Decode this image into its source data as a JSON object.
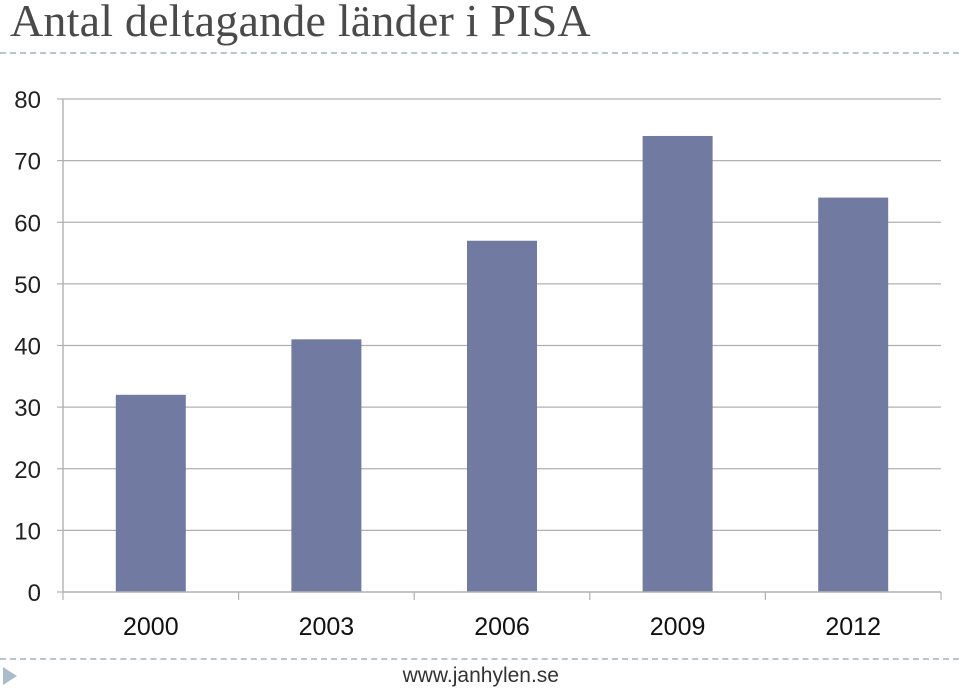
{
  "slide": {
    "title": "Antal deltagande länder i PISA",
    "footer": "www.janhylen.se"
  },
  "colors": {
    "bar": "#717aa1",
    "grid": "#b0b0b0",
    "title": "#4a4a4a",
    "divider": "#b7c5cf",
    "nav_arrow": "#a9bccb"
  },
  "icons": {
    "nav": "play-triangle-icon"
  },
  "chart_data": {
    "type": "bar",
    "title": "",
    "xlabel": "",
    "ylabel": "",
    "categories": [
      "2000",
      "2003",
      "2006",
      "2009",
      "2012"
    ],
    "values": [
      32,
      41,
      57,
      74,
      64
    ],
    "ylim": [
      0,
      80
    ],
    "yticks": [
      0,
      10,
      20,
      30,
      40,
      50,
      60,
      70,
      80
    ],
    "grid": true,
    "legend": "none"
  }
}
